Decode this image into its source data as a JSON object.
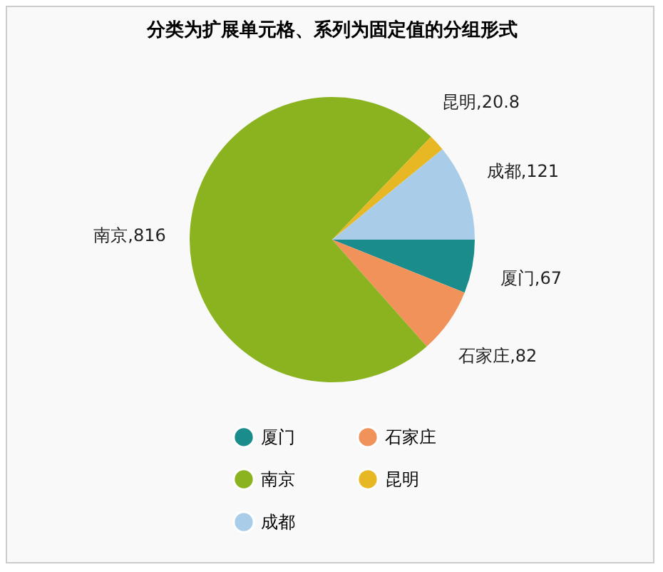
{
  "chart_data": {
    "type": "pie",
    "title": "分类为扩展单元格、系列为固定值的分组形式",
    "categories": [
      "厦门",
      "石家庄",
      "南京",
      "昆明",
      "成都"
    ],
    "values": [
      67,
      82,
      816,
      20.8,
      121
    ],
    "value_labels": [
      "厦门,67",
      "石家庄,82",
      "南京,816",
      "昆明,20.8",
      "成都,121"
    ],
    "colors": [
      "#1b8c8c",
      "#f0925a",
      "#8ab31f",
      "#e8b824",
      "#a9cde8"
    ],
    "legend": "bottom"
  }
}
